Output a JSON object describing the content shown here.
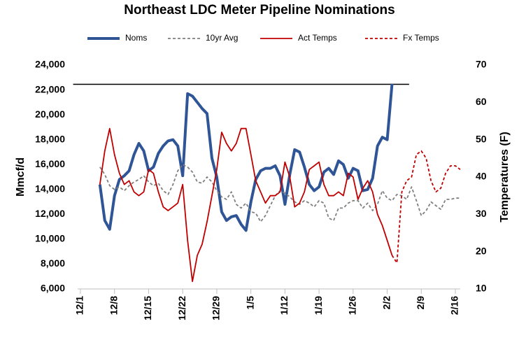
{
  "chart_data": {
    "type": "line",
    "title": "Northeast LDC Meter Pipeline Nominations",
    "y_label": "Mmcf/d",
    "y2_label": "Temperatures (F)",
    "xlim": [
      0,
      78
    ],
    "xticks": [
      {
        "value": 0,
        "label": "12/1"
      },
      {
        "value": 7,
        "label": "12/8"
      },
      {
        "value": 14,
        "label": "12/15"
      },
      {
        "value": 21,
        "label": "12/22"
      },
      {
        "value": 28,
        "label": "12/29"
      },
      {
        "value": 35,
        "label": "1/5"
      },
      {
        "value": 42,
        "label": "1/12"
      },
      {
        "value": 49,
        "label": "1/19"
      },
      {
        "value": 56,
        "label": "1/26"
      },
      {
        "value": 63,
        "label": "2/2"
      },
      {
        "value": 70,
        "label": "2/9"
      },
      {
        "value": 77,
        "label": "2/16"
      }
    ],
    "ylim": [
      6000,
      24000
    ],
    "yticks": [
      {
        "value": 6000,
        "label": "6,000"
      },
      {
        "value": 8000,
        "label": "8,000"
      },
      {
        "value": 10000,
        "label": "10,000"
      },
      {
        "value": 12000,
        "label": "12,000"
      },
      {
        "value": 14000,
        "label": "14,000"
      },
      {
        "value": 16000,
        "label": "16,000"
      },
      {
        "value": 18000,
        "label": "18,000"
      },
      {
        "value": 20000,
        "label": "20,000"
      },
      {
        "value": 22000,
        "label": "22,000"
      },
      {
        "value": 24000,
        "label": "24,000"
      }
    ],
    "y2lim": [
      10,
      70
    ],
    "y2ticks": [
      10,
      20,
      30,
      40,
      50,
      60,
      70
    ],
    "reference_line": {
      "value": 22450,
      "x": [
        -1.5,
        67.5
      ],
      "color": "#000000"
    },
    "series": [
      {
        "name": "Noms",
        "color": "#2f5597",
        "width": 4,
        "style": "solid",
        "x": [
          4,
          5,
          6,
          7,
          8,
          9,
          10,
          11,
          12,
          13,
          14,
          15,
          16,
          17,
          18,
          19,
          20,
          21,
          22,
          23,
          24,
          25,
          26,
          27,
          28,
          29,
          30,
          31,
          32,
          33,
          34,
          35,
          36,
          37,
          38,
          39,
          40,
          41,
          42,
          43,
          44,
          45,
          46,
          47,
          48,
          49,
          50,
          51,
          52,
          53,
          54,
          55,
          56,
          57,
          58,
          59,
          60,
          61,
          62,
          63,
          64
        ],
        "values": [
          14400,
          11500,
          10800,
          13500,
          14800,
          15100,
          15500,
          16800,
          17700,
          17100,
          15500,
          15800,
          16900,
          17500,
          17900,
          18000,
          17500,
          15100,
          21700,
          21500,
          21000,
          20500,
          20100,
          16500,
          15000,
          12200,
          11500,
          11800,
          11900,
          11200,
          10700,
          13000,
          14800,
          15500,
          15700,
          15700,
          15900,
          15100,
          12800,
          15200,
          17200,
          17000,
          15800,
          14400,
          13900,
          14200,
          15400,
          15700,
          15200,
          16300,
          16000,
          14900,
          15700,
          15500,
          13900,
          14000,
          14900,
          17500,
          18200,
          18000,
          22500
        ]
      },
      {
        "name": "10yr Avg",
        "color": "#7f7f7f",
        "width": 1.8,
        "style": "dashed",
        "x": [
          4,
          5,
          6,
          7,
          8,
          9,
          10,
          11,
          12,
          13,
          14,
          15,
          16,
          17,
          18,
          19,
          20,
          21,
          22,
          23,
          24,
          25,
          26,
          27,
          28,
          29,
          30,
          31,
          32,
          33,
          34,
          35,
          36,
          37,
          38,
          39,
          40,
          41,
          42,
          43,
          44,
          45,
          46,
          47,
          48,
          49,
          50,
          51,
          52,
          53,
          54,
          55,
          56,
          57,
          58,
          59,
          60,
          61,
          62,
          63,
          64,
          65,
          66,
          67,
          68,
          69,
          70,
          71,
          72,
          73,
          74,
          75,
          76,
          77,
          78
        ],
        "values": [
          15800,
          15200,
          14300,
          14000,
          14200,
          13900,
          14300,
          14600,
          14800,
          15100,
          14600,
          14300,
          14500,
          13900,
          13600,
          14400,
          15500,
          16000,
          15800,
          15400,
          14600,
          14500,
          15000,
          14600,
          13900,
          13400,
          13200,
          13800,
          12800,
          12500,
          12900,
          12200,
          12100,
          11400,
          11900,
          12700,
          13500,
          13900,
          13700,
          13400,
          13000,
          12800,
          13100,
          12900,
          12600,
          13100,
          12900,
          11700,
          11500,
          12500,
          12500,
          12900,
          13100,
          13100,
          12500,
          12900,
          12300,
          12800,
          13900,
          13300,
          13100,
          13600,
          13500,
          13200,
          14200,
          13100,
          11900,
          12300,
          13000,
          12700,
          12400,
          13200,
          13200,
          13300,
          13300
        ]
      },
      {
        "name": "Act Temps",
        "color": "#c00000",
        "width": 1.8,
        "style": "solid",
        "axis": "y2",
        "x": [
          4,
          5,
          6,
          7,
          8,
          9,
          10,
          11,
          12,
          13,
          14,
          15,
          16,
          17,
          18,
          19,
          20,
          21,
          22,
          23,
          24,
          25,
          26,
          27,
          28,
          29,
          30,
          31,
          32,
          33,
          34,
          35,
          36,
          37,
          38,
          39,
          40,
          41,
          42,
          43,
          44,
          45,
          46,
          47,
          48,
          49,
          50,
          51,
          52,
          53,
          54,
          55,
          56,
          57,
          58,
          59,
          60,
          61,
          62,
          63,
          64
        ],
        "values": [
          38,
          47,
          53,
          46,
          41,
          38,
          39,
          36,
          35,
          36,
          42,
          41,
          36,
          32,
          31,
          32,
          33,
          38,
          23,
          12,
          19,
          22,
          28,
          35,
          42,
          52,
          49,
          47,
          49,
          53,
          53,
          46,
          39,
          36,
          33,
          35,
          35,
          36,
          44,
          40,
          32,
          33,
          36,
          42,
          43,
          44,
          38,
          35,
          35,
          36,
          35,
          41,
          40,
          34,
          37,
          39,
          36,
          30,
          27,
          23,
          19
        ]
      },
      {
        "name": "Fx Temps",
        "color": "#c00000",
        "width": 1.8,
        "style": "dashed",
        "axis": "y2",
        "x": [
          64,
          65,
          66,
          67,
          68,
          69,
          70,
          71,
          72,
          73,
          74,
          75,
          76,
          77,
          78
        ],
        "values": [
          19,
          17,
          36,
          39,
          40,
          46,
          47,
          45,
          39,
          36,
          37,
          41,
          43,
          43,
          42
        ]
      }
    ]
  }
}
